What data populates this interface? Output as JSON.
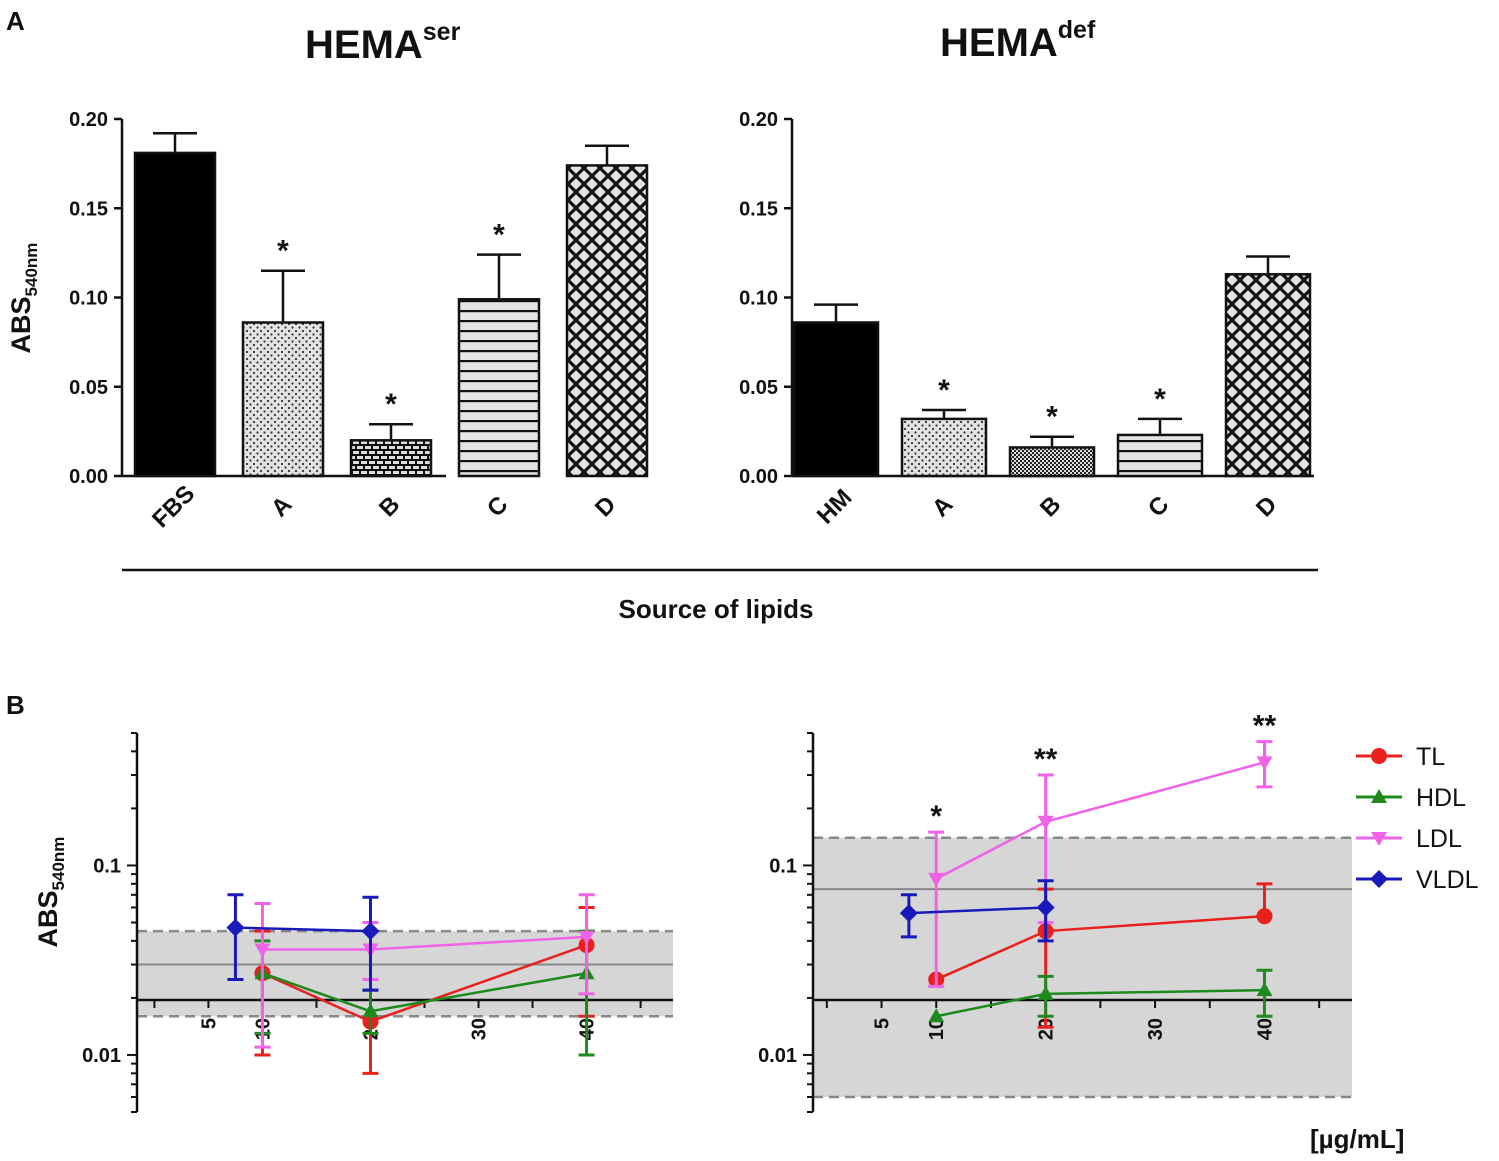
{
  "panels": {
    "a": "A",
    "b": "B"
  },
  "chart_data": [
    {
      "type": "bar",
      "title": "HEMA",
      "title_sup": "ser",
      "ylabel": "ABS",
      "ylabel_sub": "540nm",
      "ylim": [
        0,
        0.2
      ],
      "yticks": [
        "0.00",
        "0.05",
        "0.10",
        "0.15",
        "0.20"
      ],
      "categories": [
        "FBS",
        "A",
        "B",
        "C",
        "D"
      ],
      "values": [
        0.181,
        0.086,
        0.02,
        0.099,
        0.174
      ],
      "errors": [
        0.011,
        0.029,
        0.009,
        0.025,
        0.011
      ],
      "significance": [
        "",
        "*",
        "*",
        "*",
        ""
      ],
      "patterns": [
        "solid",
        "dots",
        "bricks",
        "hlines",
        "crosshatch"
      ]
    },
    {
      "type": "bar",
      "title": "HEMA",
      "title_sup": "def",
      "ylim": [
        0,
        0.2
      ],
      "yticks": [
        "0.00",
        "0.05",
        "0.10",
        "0.15",
        "0.20"
      ],
      "categories": [
        "HM",
        "A",
        "B",
        "C",
        "D"
      ],
      "values": [
        0.086,
        0.032,
        0.016,
        0.023,
        0.113
      ],
      "errors": [
        0.01,
        0.005,
        0.006,
        0.009,
        0.01
      ],
      "significance": [
        "",
        "*",
        "*",
        "*",
        ""
      ],
      "patterns": [
        "solid",
        "dots",
        "fine",
        "hlines",
        "crosshatch"
      ],
      "shared_xlabel": "Source of lipids"
    },
    {
      "type": "line",
      "ylabel": "ABS",
      "ylabel_sub": "540nm",
      "yscale": "log",
      "ylim": [
        0.005,
        0.5
      ],
      "yticks": [
        "0.1",
        "0.01"
      ],
      "xlim": [
        -3,
        48
      ],
      "xticks": [
        "5",
        "10",
        "20",
        "30",
        "40"
      ],
      "band": {
        "low": 0.016,
        "mid": 0.03,
        "high": 0.045
      },
      "series": [
        {
          "name": "TL",
          "color": "#e8201e",
          "marker": "circle",
          "x": [
            10,
            20,
            40
          ],
          "y": [
            0.027,
            0.015,
            0.038
          ],
          "err_low": [
            0.01,
            0.008,
            0.016
          ],
          "err_high": [
            0.045,
            0.022,
            0.06
          ]
        },
        {
          "name": "HDL",
          "color": "#1e8a1e",
          "marker": "triangle-up",
          "x": [
            10,
            20,
            40
          ],
          "y": [
            0.027,
            0.017,
            0.027
          ],
          "err_low": [
            0.013,
            0.013,
            0.01
          ],
          "err_high": [
            0.04,
            0.022,
            0.045
          ]
        },
        {
          "name": "LDL",
          "color": "#f062e6",
          "marker": "triangle-down",
          "x": [
            10,
            20,
            40
          ],
          "y": [
            0.036,
            0.036,
            0.042
          ],
          "err_low": [
            0.011,
            0.025,
            0.021
          ],
          "err_high": [
            0.063,
            0.05,
            0.07
          ]
        },
        {
          "name": "VLDL",
          "color": "#1a1aba",
          "marker": "diamond",
          "x": [
            7.5,
            20
          ],
          "y": [
            0.047,
            0.045
          ],
          "err_low": [
            0.025,
            0.022
          ],
          "err_high": [
            0.07,
            0.068
          ]
        }
      ]
    },
    {
      "type": "line",
      "yscale": "log",
      "ylim": [
        0.005,
        0.5
      ],
      "yticks": [
        "0.1",
        "0.01"
      ],
      "xlim": [
        -3,
        48
      ],
      "xticks": [
        "5",
        "10",
        "20",
        "30",
        "40"
      ],
      "xlabel": "[µg/mL]",
      "band": {
        "low": 0.006,
        "mid": 0.075,
        "high": 0.14
      },
      "series": [
        {
          "name": "TL",
          "color": "#e8201e",
          "marker": "circle",
          "x": [
            10,
            20,
            40
          ],
          "y": [
            0.025,
            0.045,
            0.054
          ],
          "err_low": [
            0.025,
            0.014,
            0.054
          ],
          "err_high": [
            0.025,
            0.075,
            0.08
          ]
        },
        {
          "name": "HDL",
          "color": "#1e8a1e",
          "marker": "triangle-up",
          "x": [
            10,
            20,
            40
          ],
          "y": [
            0.016,
            0.021,
            0.022
          ],
          "err_low": [
            0.016,
            0.016,
            0.016
          ],
          "err_high": [
            0.016,
            0.026,
            0.028
          ]
        },
        {
          "name": "LDL",
          "color": "#f062e6",
          "marker": "triangle-down",
          "x": [
            10,
            20,
            40
          ],
          "y": [
            0.085,
            0.17,
            0.35
          ],
          "err_low": [
            0.023,
            0.05,
            0.26
          ],
          "err_high": [
            0.15,
            0.3,
            0.45
          ]
        },
        {
          "name": "VLDL",
          "color": "#1a1aba",
          "marker": "diamond",
          "x": [
            7.5,
            20
          ],
          "y": [
            0.056,
            0.06
          ],
          "err_low": [
            0.042,
            0.04
          ],
          "err_high": [
            0.07,
            0.083
          ]
        }
      ],
      "significance": [
        {
          "x": 10,
          "label": "*"
        },
        {
          "x": 20,
          "label": "**"
        },
        {
          "x": 40,
          "label": "**"
        }
      ],
      "legend": [
        "TL",
        "HDL",
        "LDL",
        "VLDL"
      ]
    }
  ]
}
